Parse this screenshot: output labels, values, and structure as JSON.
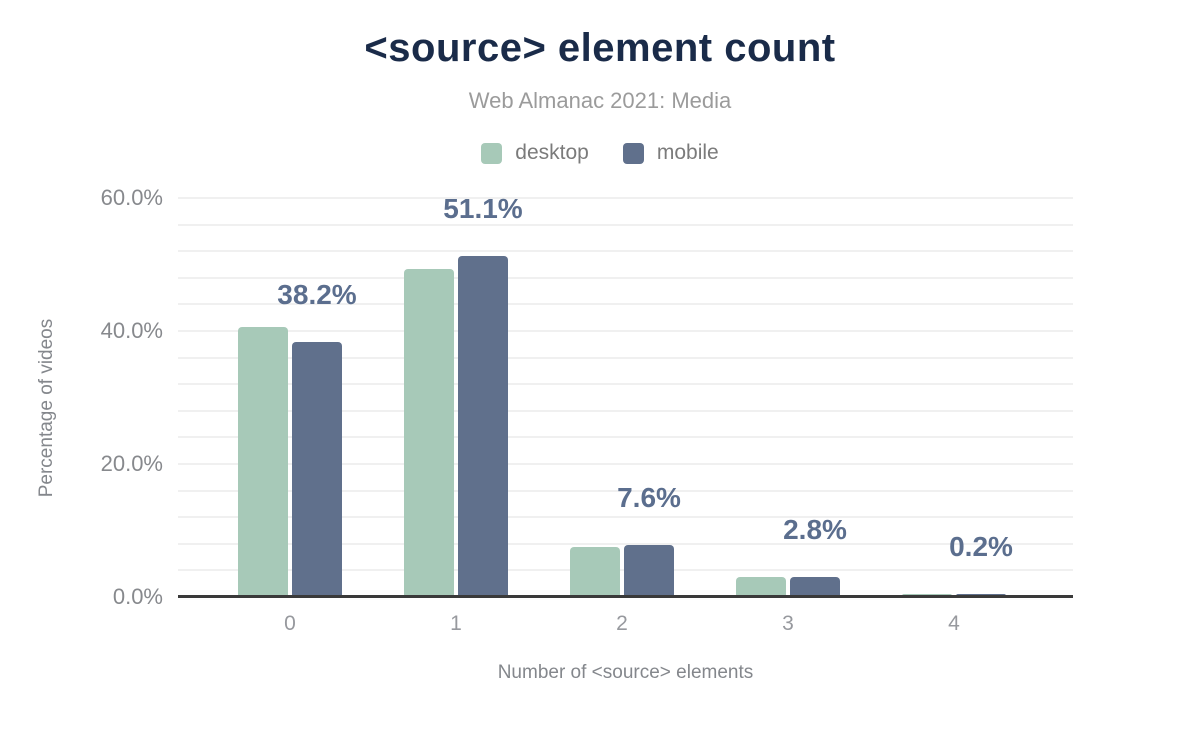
{
  "header": {
    "title": "<source> element count",
    "subtitle": "Web Almanac 2021: Media"
  },
  "colors": {
    "title": "#1a2b49",
    "subtitle": "#9b9b9b",
    "legend_text": "#7b7b7b",
    "desktop": "#a7c9b8",
    "mobile": "#60708c",
    "data_label": "#5b6e8e",
    "y_tick": "#87898d",
    "x_tick": "#97999e",
    "axis_title": "#84878c",
    "gridline": "#f0f0f0",
    "axis_line": "#3a3a3a",
    "background": "#ffffff"
  },
  "chart_data": {
    "type": "bar",
    "title": "<source> element count",
    "subtitle": "Web Almanac 2021: Media",
    "categories": [
      "0",
      "1",
      "2",
      "3",
      "4"
    ],
    "series": [
      {
        "name": "desktop",
        "color": "#a7c9b8",
        "values": [
          40.4,
          49.2,
          7.3,
          2.9,
          0.2
        ]
      },
      {
        "name": "mobile",
        "color": "#60708c",
        "values": [
          38.2,
          51.1,
          7.6,
          2.8,
          0.2
        ]
      }
    ],
    "data_labels": {
      "series": "mobile",
      "values": [
        "38.2%",
        "51.1%",
        "7.6%",
        "2.8%",
        "0.2%"
      ]
    },
    "xlabel": "Number of <source> elements",
    "ylabel": "Percentage of videos",
    "ylim": [
      0,
      60
    ],
    "ytick_step": 20,
    "ytick_labels": [
      "0.0%",
      "20.0%",
      "40.0%",
      "60.0%"
    ],
    "grid_step": 4,
    "grid": true,
    "legend_position": "top"
  }
}
